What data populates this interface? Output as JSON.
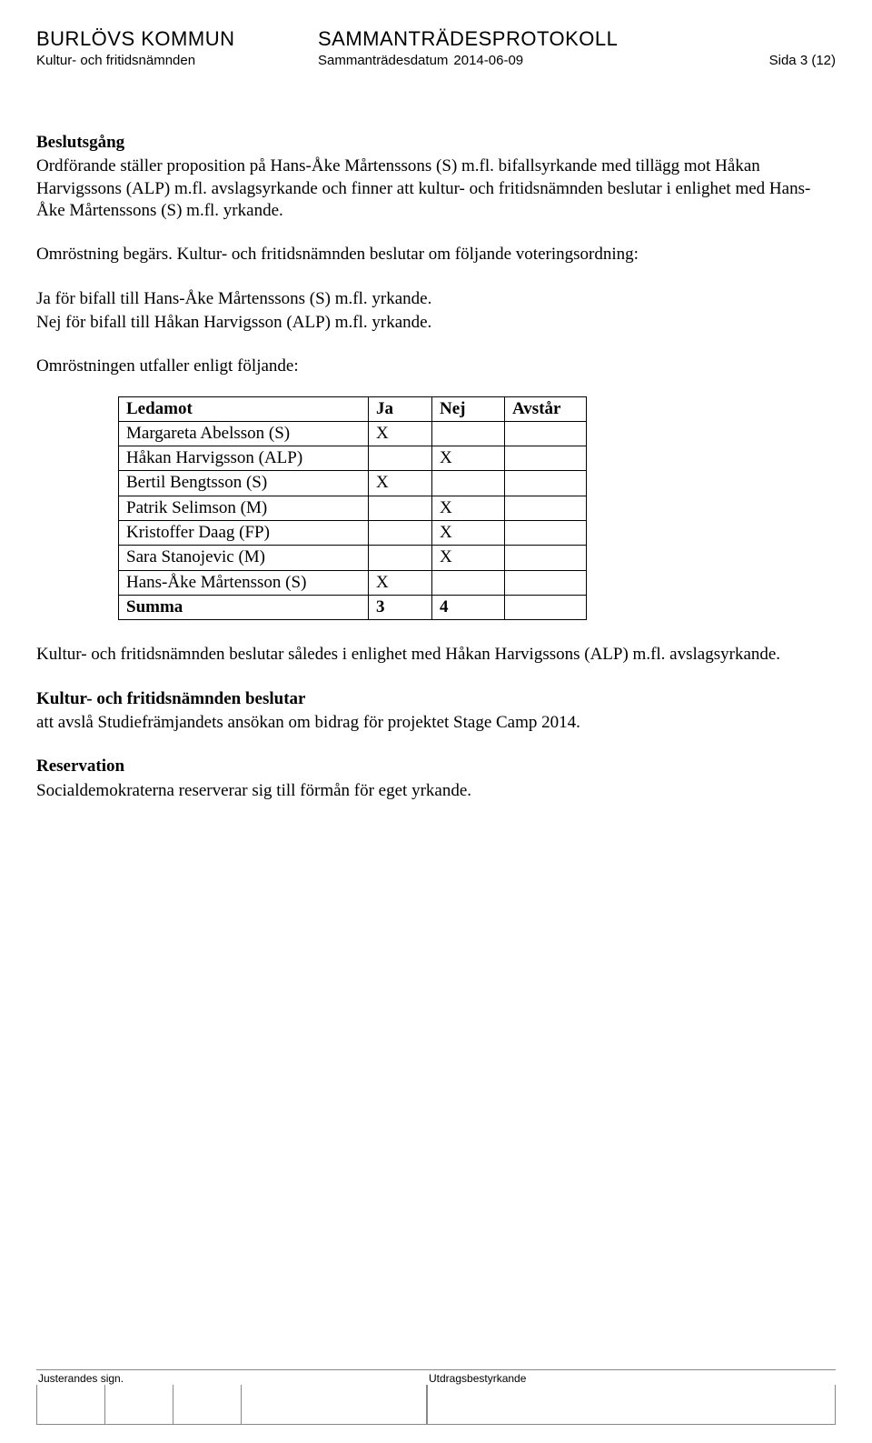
{
  "header": {
    "org": "BURLÖVS KOMMUN",
    "doc_type": "SAMMANTRÄDESPROTOKOLL",
    "committee": "Kultur- och fritidsnämnden",
    "date_label": "Sammanträdesdatum",
    "date": "2014-06-09",
    "page_label": "Sida 3 (12)"
  },
  "body": {
    "h_beslutsgang": "Beslutsgång",
    "p1": "Ordförande ställer proposition på Hans-Åke Mårtenssons (S) m.fl. bifallsyrkande med tillägg mot Håkan Harvigssons (ALP) m.fl. avslagsyrkande och finner att kultur- och fritidsnämnden beslutar i enlighet med Hans-Åke Mårtenssons (S) m.fl. yrkande.",
    "p2": "Omröstning begärs. Kultur- och fritidsnämnden beslutar om följande voteringsordning:",
    "p3a": "Ja för bifall till Hans-Åke Mårtenssons (S) m.fl. yrkande.",
    "p3b": "Nej för bifall till Håkan Harvigsson (ALP) m.fl. yrkande.",
    "p4": "Omröstningen utfaller enligt följande:",
    "p5": "Kultur- och fritidsnämnden beslutar således i enlighet med Håkan Harvigssons (ALP) m.fl. avslagsyrkande.",
    "h_beslutar": "Kultur- och fritidsnämnden beslutar",
    "p6": "att avslå Studiefrämjandets ansökan om bidrag för projektet Stage Camp 2014.",
    "h_reservation": "Reservation",
    "p7": "Socialdemokraterna reserverar sig till förmån för eget yrkande."
  },
  "vote_table": {
    "columns": [
      "Ledamot",
      "Ja",
      "Nej",
      "Avstår"
    ],
    "rows": [
      {
        "ledamot": "Margareta Abelsson (S)",
        "ja": "X",
        "nej": "",
        "avstar": ""
      },
      {
        "ledamot": "Håkan Harvigsson (ALP)",
        "ja": "",
        "nej": "X",
        "avstar": ""
      },
      {
        "ledamot": "Bertil Bengtsson (S)",
        "ja": "X",
        "nej": "",
        "avstar": ""
      },
      {
        "ledamot": "Patrik Selimson (M)",
        "ja": "",
        "nej": "X",
        "avstar": ""
      },
      {
        "ledamot": "Kristoffer Daag (FP)",
        "ja": "",
        "nej": "X",
        "avstar": ""
      },
      {
        "ledamot": "Sara Stanojevic (M)",
        "ja": "",
        "nej": "X",
        "avstar": ""
      },
      {
        "ledamot": "Hans-Åke Mårtensson (S)",
        "ja": "X",
        "nej": "",
        "avstar": ""
      }
    ],
    "sum_label": "Summa",
    "sum_ja": "3",
    "sum_nej": "4",
    "sum_avstar": ""
  },
  "footer": {
    "left": "Justerandes sign.",
    "right": "Utdragsbestyrkande"
  }
}
